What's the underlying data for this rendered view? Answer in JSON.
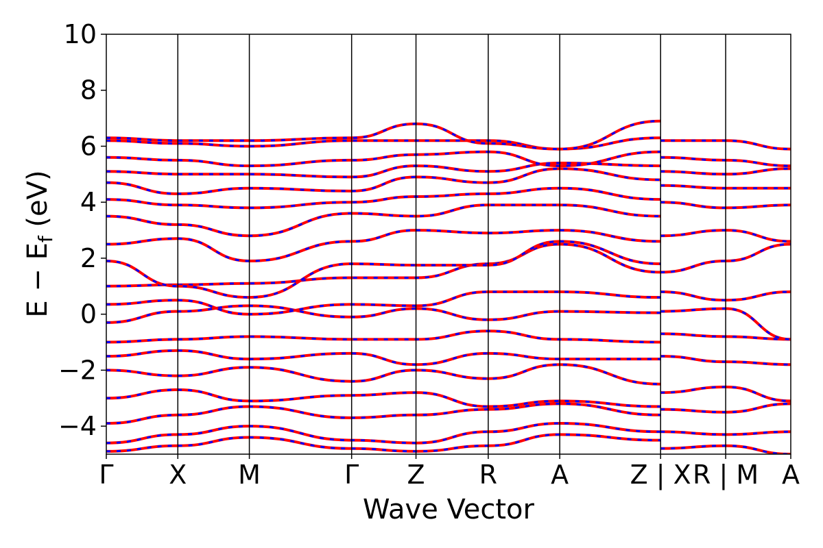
{
  "chart_data": {
    "type": "line",
    "xlabel": "Wave Vector",
    "ylabel": "E − E",
    "ylabel_sub": "f",
    "ylabel_unit": " (eV)",
    "ylim": [
      -5,
      10
    ],
    "yticks": [
      10,
      8,
      6,
      4,
      2,
      0,
      -2,
      -4
    ],
    "ytick_labels": [
      "10",
      "8",
      "6",
      "4",
      "2",
      "0",
      "−2",
      "−4"
    ],
    "kpath_positions": [
      0,
      1,
      2,
      3.43,
      4.33,
      5.34,
      6.34,
      7.75,
      8.66,
      9.57
    ],
    "kpath_labels": [
      "Γ",
      "X",
      "M",
      "Γ",
      "Z",
      "R",
      "A",
      "Z | XR | M",
      "",
      "A"
    ],
    "kpath_tick_labels": [
      "Γ",
      "X",
      "M",
      "Γ",
      "Z",
      "R",
      "A",
      "Z | X",
      "R | M",
      "A"
    ],
    "series_colors": [
      "#ff0000",
      "#0000ff"
    ],
    "bands": [
      {
        "x": [
          0,
          1,
          2,
          3.43,
          4.33,
          5.34,
          6.34,
          7.75
        ],
        "y": [
          -4.9,
          -4.7,
          -4.4,
          -4.8,
          -4.9,
          -4.7,
          -4.3,
          -4.5
        ]
      },
      {
        "x": [
          0,
          1,
          2,
          3.43,
          4.33,
          5.34,
          6.34,
          7.75
        ],
        "y": [
          -4.6,
          -4.3,
          -4.0,
          -4.5,
          -4.6,
          -4.2,
          -3.9,
          -4.2
        ]
      },
      {
        "x": [
          0,
          1,
          2,
          3.43,
          4.33,
          5.34,
          6.34,
          7.75
        ],
        "y": [
          -3.9,
          -3.6,
          -3.3,
          -3.7,
          -3.6,
          -3.4,
          -3.2,
          -3.6
        ]
      },
      {
        "x": [
          0,
          1,
          2,
          3.43,
          4.33,
          5.34,
          6.34,
          7.75
        ],
        "y": [
          -3.0,
          -2.7,
          -3.1,
          -2.9,
          -2.8,
          -3.3,
          -3.1,
          -3.3
        ]
      },
      {
        "x": [
          0,
          1,
          2,
          3.43,
          4.33,
          5.34,
          6.34,
          7.75
        ],
        "y": [
          -2.0,
          -2.2,
          -1.9,
          -2.4,
          -2.0,
          -2.3,
          -1.8,
          -2.5
        ]
      },
      {
        "x": [
          0,
          1,
          2,
          3.43,
          4.33,
          5.34,
          6.34,
          7.75
        ],
        "y": [
          -1.5,
          -1.3,
          -1.6,
          -1.4,
          -1.8,
          -1.4,
          -1.6,
          -1.6
        ]
      },
      {
        "x": [
          0,
          1,
          2,
          3.43,
          4.33,
          5.34,
          6.34,
          7.75
        ],
        "y": [
          -1.0,
          -0.9,
          -0.8,
          -0.9,
          -0.9,
          -0.6,
          -0.9,
          -1.0
        ]
      },
      {
        "x": [
          0,
          1,
          2,
          3.43,
          4.33,
          5.34,
          6.34,
          7.75
        ],
        "y": [
          -0.3,
          0.1,
          0.3,
          -0.1,
          0.2,
          -0.2,
          0.1,
          0.05
        ]
      },
      {
        "x": [
          0,
          1,
          2,
          3.43,
          4.33,
          5.34,
          6.34,
          7.75
        ],
        "y": [
          0.35,
          0.5,
          0.0,
          0.35,
          0.3,
          0.8,
          0.8,
          0.6
        ]
      },
      {
        "x": [
          0,
          1,
          2,
          3.43,
          4.33,
          5.34,
          6.34,
          7.75
        ],
        "y": [
          1.0,
          1.05,
          1.1,
          1.3,
          1.3,
          1.8,
          2.5,
          1.5
        ]
      },
      {
        "x": [
          0,
          1,
          2,
          3.43,
          4.33,
          5.34,
          6.34,
          7.75
        ],
        "y": [
          1.9,
          1.0,
          0.6,
          1.8,
          1.75,
          1.75,
          2.6,
          1.8
        ]
      },
      {
        "x": [
          0,
          1,
          2,
          3.43,
          4.33,
          5.34,
          6.34,
          7.75
        ],
        "y": [
          2.5,
          2.7,
          1.9,
          2.6,
          3.0,
          2.9,
          3.0,
          2.6
        ]
      },
      {
        "x": [
          0,
          1,
          2,
          3.43,
          4.33,
          5.34,
          6.34,
          7.75
        ],
        "y": [
          3.5,
          3.2,
          2.8,
          3.6,
          3.5,
          3.9,
          3.9,
          3.5
        ]
      },
      {
        "x": [
          0,
          1,
          2,
          3.43,
          4.33,
          5.34,
          6.34,
          7.75
        ],
        "y": [
          4.1,
          3.9,
          3.8,
          4.0,
          4.2,
          4.3,
          4.5,
          4.1
        ]
      },
      {
        "x": [
          0,
          1,
          2,
          3.43,
          4.33,
          5.34,
          6.34,
          7.75
        ],
        "y": [
          4.7,
          4.3,
          4.5,
          4.4,
          4.9,
          4.7,
          5.2,
          4.8
        ]
      },
      {
        "x": [
          0,
          1,
          2,
          3.43,
          4.33,
          5.34,
          6.34,
          7.75
        ],
        "y": [
          5.1,
          5.0,
          5.0,
          4.9,
          5.3,
          5.1,
          5.4,
          5.3
        ]
      },
      {
        "x": [
          0,
          1,
          2,
          3.43,
          4.33,
          5.34,
          6.34,
          7.75
        ],
        "y": [
          5.6,
          5.5,
          5.3,
          5.5,
          5.7,
          5.8,
          5.3,
          5.8
        ]
      },
      {
        "x": [
          0,
          1,
          2,
          3.43,
          4.33,
          5.34,
          6.34,
          7.75
        ],
        "y": [
          6.2,
          6.1,
          6.0,
          6.2,
          6.2,
          6.2,
          5.9,
          6.3
        ]
      },
      {
        "x": [
          0,
          1,
          2,
          3.43,
          4.33,
          5.34,
          6.34,
          7.75
        ],
        "y": [
          6.3,
          6.2,
          6.2,
          6.3,
          6.8,
          6.1,
          5.9,
          6.9
        ]
      },
      {
        "x": [
          7.75,
          8.66,
          9.57
        ],
        "y": [
          -4.8,
          -4.7,
          -5.0
        ]
      },
      {
        "x": [
          7.75,
          8.66,
          9.57
        ],
        "y": [
          -4.2,
          -4.3,
          -4.2
        ]
      },
      {
        "x": [
          7.75,
          8.66,
          9.57
        ],
        "y": [
          -3.4,
          -3.5,
          -3.2
        ]
      },
      {
        "x": [
          7.75,
          8.66,
          9.57
        ],
        "y": [
          -2.8,
          -2.6,
          -3.1
        ]
      },
      {
        "x": [
          7.75,
          8.66,
          9.57
        ],
        "y": [
          -1.5,
          -1.7,
          -1.8
        ]
      },
      {
        "x": [
          7.75,
          8.66,
          9.57
        ],
        "y": [
          -0.7,
          -0.8,
          -0.9
        ]
      },
      {
        "x": [
          7.75,
          8.66,
          9.57
        ],
        "y": [
          0.1,
          0.2,
          -0.9
        ]
      },
      {
        "x": [
          7.75,
          8.66,
          9.57
        ],
        "y": [
          0.8,
          0.5,
          0.8
        ]
      },
      {
        "x": [
          7.75,
          8.66,
          9.57
        ],
        "y": [
          1.5,
          1.9,
          2.5
        ]
      },
      {
        "x": [
          7.75,
          8.66,
          9.57
        ],
        "y": [
          2.8,
          3.0,
          2.6
        ]
      },
      {
        "x": [
          7.75,
          8.66,
          9.57
        ],
        "y": [
          4.0,
          3.8,
          3.9
        ]
      },
      {
        "x": [
          7.75,
          8.66,
          9.57
        ],
        "y": [
          4.6,
          4.5,
          4.5
        ]
      },
      {
        "x": [
          7.75,
          8.66,
          9.57
        ],
        "y": [
          5.1,
          5.0,
          5.2
        ]
      },
      {
        "x": [
          7.75,
          8.66,
          9.57
        ],
        "y": [
          5.6,
          5.5,
          5.3
        ]
      },
      {
        "x": [
          7.75,
          8.66,
          9.57
        ],
        "y": [
          6.2,
          6.2,
          5.9
        ]
      }
    ]
  }
}
